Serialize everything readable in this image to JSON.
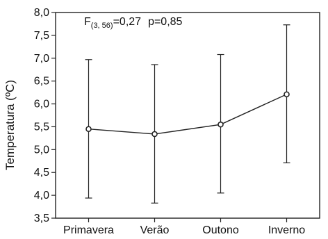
{
  "chart_data": {
    "type": "line",
    "title": "",
    "xlabel": "",
    "ylabel": "Temperatura (ºC)",
    "annotation": {
      "stat_letter": "F",
      "stat_subscript": "(3, 56)",
      "stat_value": "=0,27",
      "p_text": "p=0,85"
    },
    "categories": [
      "Primavera",
      "Verão",
      "Outono",
      "Inverno"
    ],
    "series": [
      {
        "values": [
          5.45,
          5.34,
          5.55,
          6.21
        ],
        "error_low": [
          3.94,
          3.83,
          4.05,
          4.71
        ],
        "error_high": [
          6.97,
          6.86,
          7.08,
          7.73
        ]
      }
    ],
    "ylim": [
      3.5,
      8.0
    ],
    "yticks": [
      3.5,
      4.0,
      4.5,
      5.0,
      5.5,
      6.0,
      6.5,
      7.0,
      7.5,
      8.0
    ],
    "ytick_labels": [
      "3,5",
      "4,0",
      "4,5",
      "5,0",
      "5,5",
      "6,0",
      "6,5",
      "7,0",
      "7,5",
      "8,0"
    ],
    "grid": false,
    "legend": "none",
    "colors": {
      "line": "#222222",
      "marker_fill": "#ffffff",
      "axis": "#222222"
    }
  }
}
